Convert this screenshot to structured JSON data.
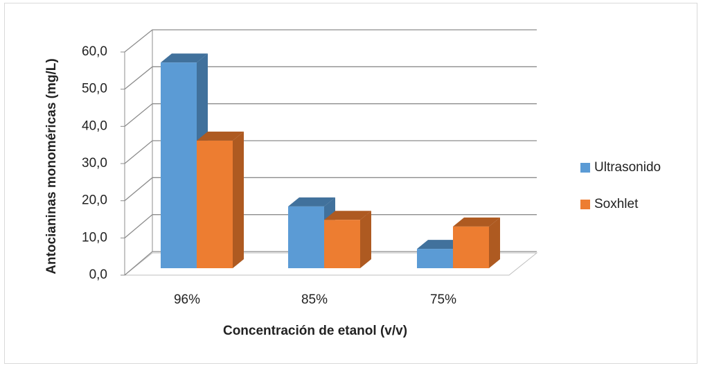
{
  "chart_data": {
    "type": "bar3d",
    "categories": [
      "96%",
      "85%",
      "75%"
    ],
    "series": [
      {
        "name": "Ultrasonido",
        "color": "#5b9bd5",
        "side_color": "#41719c",
        "values": [
          55.3,
          16.6,
          5.2
        ]
      },
      {
        "name": "Soxhlet",
        "color": "#ed7d31",
        "side_color": "#ae5a21",
        "values": [
          34.3,
          13.0,
          11.2
        ]
      }
    ],
    "ylim": [
      0,
      60
    ],
    "yticks": [
      {
        "value": 0,
        "label": "0,0"
      },
      {
        "value": 10,
        "label": "10,0"
      },
      {
        "value": 20,
        "label": "20,0"
      },
      {
        "value": 30,
        "label": "30,0"
      },
      {
        "value": 40,
        "label": "40,0"
      },
      {
        "value": 50,
        "label": "50,0"
      },
      {
        "value": 60,
        "label": "60,0"
      }
    ],
    "y_label": "Antocianinas monoméricas (mg/L)",
    "x_label": "Concentración de etanol (v/v)",
    "grid": true,
    "legend": "right"
  }
}
